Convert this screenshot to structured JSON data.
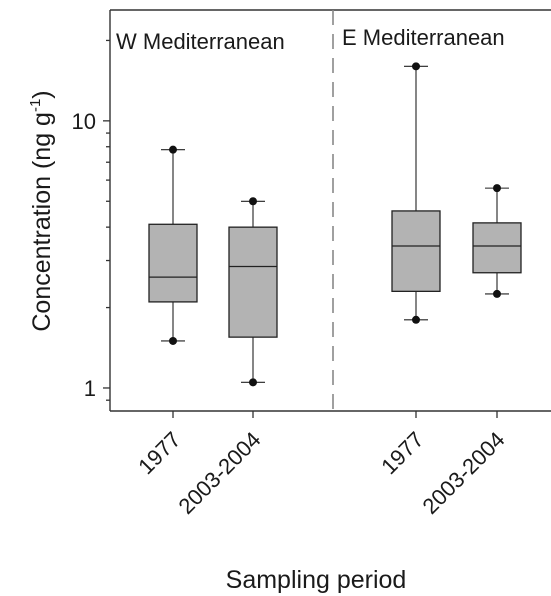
{
  "chart_data": {
    "type": "box",
    "ylabel": "Concentration (ng g",
    "ylabel_superscript": "-1",
    "ylabel_suffix": ")",
    "xlabel": "Sampling period",
    "yscale": "log",
    "ylim": [
      0.82,
      26
    ],
    "yticks": [
      {
        "value": 1,
        "label": "1"
      },
      {
        "value": 10,
        "label": "10"
      }
    ],
    "panels": [
      {
        "label": "W Mediterranean",
        "boxes": [
          {
            "category": "1977",
            "whisker_low": 1.5,
            "q1": 2.1,
            "median": 2.6,
            "q3": 4.1,
            "whisker_high": 7.8,
            "outliers": [
              1.5,
              7.8
            ]
          },
          {
            "category": "2003-2004",
            "whisker_low": 1.05,
            "q1": 1.55,
            "median": 2.85,
            "q3": 4.0,
            "whisker_high": 5.0,
            "outliers": [
              1.05,
              5.0
            ]
          }
        ]
      },
      {
        "label": "E Mediterranean",
        "boxes": [
          {
            "category": "1977",
            "whisker_low": 1.8,
            "q1": 2.3,
            "median": 3.4,
            "q3": 4.6,
            "whisker_high": 16.0,
            "outliers": [
              1.8,
              16.0
            ]
          },
          {
            "category": "2003-2004",
            "whisker_low": 2.25,
            "q1": 2.7,
            "median": 3.4,
            "q3": 4.15,
            "whisker_high": 5.6,
            "outliers": [
              2.25,
              5.6
            ]
          }
        ]
      }
    ],
    "colors": {
      "box_fill": "#b3b3b3",
      "box_stroke": "#222222",
      "divider": "#888888"
    }
  }
}
